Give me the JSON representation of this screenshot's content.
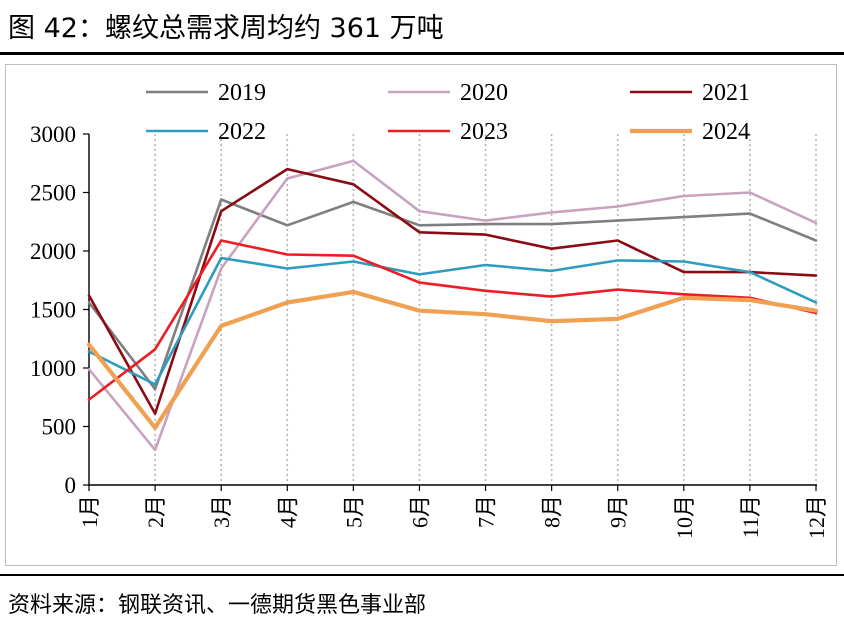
{
  "figure": {
    "title": "图 42：螺纹总需求周均约 361 万吨",
    "source": "资料来源：钢联资讯、一德期货黑色事业部"
  },
  "chart_data": {
    "type": "line",
    "categories": [
      "1月",
      "2月",
      "3月",
      "4月",
      "5月",
      "6月",
      "7月",
      "8月",
      "9月",
      "10月",
      "11月",
      "12月"
    ],
    "ylim": [
      0,
      3000
    ],
    "yticks": [
      0,
      500,
      1000,
      1500,
      2000,
      2500,
      3000
    ],
    "grid": "vertical-dotted",
    "legend_position": "top",
    "series": [
      {
        "name": "2019",
        "color": "#7f7f7f",
        "values": [
          1560,
          820,
          2440,
          2220,
          2420,
          2220,
          2230,
          2230,
          2260,
          2290,
          2320,
          2090
        ]
      },
      {
        "name": "2020",
        "color": "#c9a2c0",
        "values": [
          990,
          300,
          1850,
          2620,
          2770,
          2340,
          2260,
          2330,
          2380,
          2470,
          2500,
          2240
        ]
      },
      {
        "name": "2021",
        "color": "#8b0b14",
        "values": [
          1620,
          610,
          2340,
          2700,
          2570,
          2160,
          2140,
          2020,
          2090,
          1820,
          1820,
          1790
        ]
      },
      {
        "name": "2022",
        "color": "#2e9cbf",
        "values": [
          1140,
          860,
          1940,
          1850,
          1910,
          1800,
          1880,
          1830,
          1920,
          1910,
          1820,
          1560
        ]
      },
      {
        "name": "2023",
        "color": "#ee1c25",
        "values": [
          730,
          1160,
          2090,
          1970,
          1960,
          1730,
          1660,
          1610,
          1670,
          1630,
          1600,
          1470
        ]
      },
      {
        "name": "2024",
        "color": "#f0a050",
        "values": [
          1200,
          490,
          1360,
          1560,
          1650,
          1490,
          1460,
          1400,
          1420,
          1600,
          1580,
          1490
        ]
      }
    ]
  }
}
